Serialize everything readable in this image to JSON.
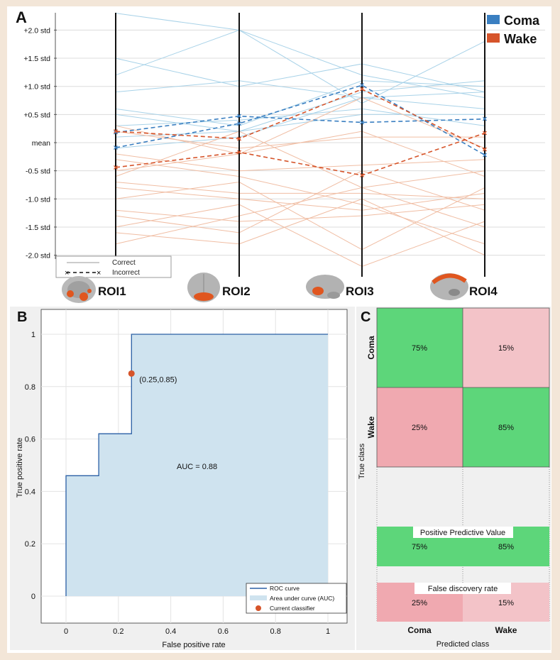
{
  "panels": {
    "a": "A",
    "b": "B",
    "c": "C"
  },
  "colors": {
    "coma": "#3a7fc1",
    "wake": "#d6542a",
    "coma_light": "#a8d2e8",
    "wake_light": "#f0bda3",
    "auc_fill": "#cfe3ef",
    "roc_line": "#2a5fa5",
    "green": "#5dd67a",
    "pink": "#f0a9b0",
    "pink_light": "#f3c3c8"
  },
  "chart_data": [
    {
      "type": "line",
      "title": "",
      "legend": [
        "Coma",
        "Wake"
      ],
      "style_legend": {
        "correct": "Correct",
        "incorrect": "Incorrect"
      },
      "x": [
        "ROI1",
        "ROI2",
        "ROI3",
        "ROI4"
      ],
      "y_ticks": [
        {
          "v": 2.0,
          "label": "+2.0 std"
        },
        {
          "v": 1.5,
          "label": "+1.5 std"
        },
        {
          "v": 1.0,
          "label": "+1.0 std"
        },
        {
          "v": 0.5,
          "label": "+0.5 std"
        },
        {
          "v": 0,
          "label": "mean"
        },
        {
          "v": -0.5,
          "label": "-0.5 std"
        },
        {
          "v": -1.0,
          "label": "-1.0 std"
        },
        {
          "v": -1.5,
          "label": "-1.5 std"
        },
        {
          "v": -2.0,
          "label": "-2.0 std"
        }
      ],
      "ylim": [
        -2.3,
        2.3
      ],
      "correct_coma": [
        [
          2.3,
          2.0,
          1.2,
          0.8
        ],
        [
          1.5,
          1.0,
          1.4,
          0.9
        ],
        [
          1.2,
          2.0,
          0.7,
          1.8
        ],
        [
          0.9,
          1.1,
          0.8,
          0.9
        ],
        [
          0.6,
          0.3,
          1.1,
          1.0
        ],
        [
          0.5,
          0.2,
          0.9,
          1.1
        ],
        [
          0.3,
          0.4,
          0.6,
          0.3
        ],
        [
          0.1,
          0.2,
          0.5,
          0.5
        ],
        [
          -0.1,
          0.1,
          0.8,
          0.6
        ]
      ],
      "correct_wake": [
        [
          0.3,
          -0.2,
          0.8,
          -0.1
        ],
        [
          0.2,
          -0.1,
          0.1,
          0.1
        ],
        [
          -0.2,
          -0.5,
          -0.4,
          -0.3
        ],
        [
          -0.5,
          -0.2,
          0.2,
          -0.6
        ],
        [
          -0.6,
          0.2,
          -0.8,
          -0.5
        ],
        [
          -0.7,
          -0.9,
          -0.9,
          -1.0
        ],
        [
          -0.8,
          -1.0,
          -1.2,
          -0.9
        ],
        [
          -1.0,
          -0.7,
          -1.9,
          -0.8
        ],
        [
          -1.2,
          -1.4,
          -1.3,
          -1.1
        ],
        [
          -1.3,
          -1.6,
          -0.5,
          -1.2
        ],
        [
          -1.5,
          -1.1,
          -2.2,
          -1.4
        ],
        [
          -1.6,
          -1.8,
          -1.0,
          -2.0
        ],
        [
          -1.8,
          -1.3,
          -0.8,
          -1.5
        ],
        [
          -0.3,
          -0.6,
          -1.1,
          -1.8
        ]
      ],
      "incorrect_coma": [
        [
          0.18,
          0.47,
          0.36,
          0.42
        ],
        [
          -0.09,
          0.34,
          1.02,
          -0.22
        ]
      ],
      "incorrect_wake": [
        [
          0.2,
          0.07,
          0.95,
          -0.12
        ],
        [
          -0.44,
          -0.17,
          -0.58,
          0.17
        ]
      ]
    },
    {
      "type": "line",
      "title": "",
      "xlabel": "False positive rate",
      "ylabel": "True positive rate",
      "xlim": [
        -0.1,
        1.1
      ],
      "ylim": [
        -0.1,
        1.1
      ],
      "x_ticks": [
        "0",
        "0.2",
        "0.4",
        "0.6",
        "0.8",
        "1"
      ],
      "y_ticks": [
        "0",
        "0.2",
        "0.4",
        "0.6",
        "0.8",
        "1"
      ],
      "roc": [
        [
          0,
          0
        ],
        [
          0,
          0.46
        ],
        [
          0.125,
          0.46
        ],
        [
          0.125,
          0.62
        ],
        [
          0.25,
          0.62
        ],
        [
          0.25,
          1.0
        ],
        [
          1.0,
          1.0
        ],
        [
          1.0,
          0
        ]
      ],
      "auc_label": "AUC = 0.88",
      "classifier": {
        "x": 0.25,
        "y": 0.85,
        "label": "(0.25,0.85)"
      },
      "legend": [
        "ROC curve",
        "Area under curve (AUC)",
        "Current classifier"
      ]
    },
    {
      "type": "heatmap",
      "xlabel": "Predicted class",
      "ylabel": "True class",
      "categories": [
        "Coma",
        "Wake"
      ],
      "matrix": [
        [
          "75%",
          "15%"
        ],
        [
          "25%",
          "85%"
        ]
      ],
      "ppv_title": "Positive Predictive Value",
      "ppv": [
        "75%",
        "85%"
      ],
      "fdr_title": "False discovery rate",
      "fdr": [
        "25%",
        "15%"
      ]
    }
  ]
}
